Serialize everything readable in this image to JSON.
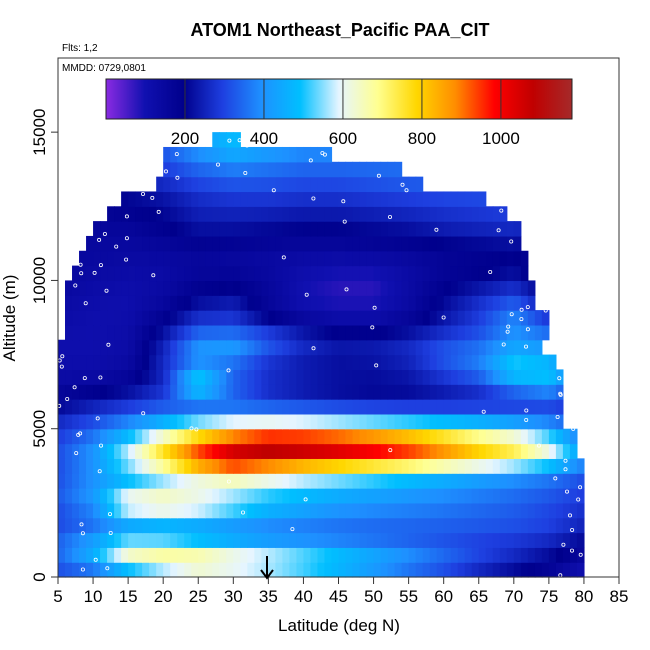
{
  "chart_data": {
    "type": "heatmap",
    "title": "ATOM1 Northeast_Pacific PAA_CIT",
    "annotations": {
      "flights": "Flts: 1,2",
      "dates": "MMDD: 0729,0801"
    },
    "xlabel": "Latitude (deg N)",
    "ylabel": "Altitude (m)",
    "xlim": [
      5,
      85
    ],
    "ylim": [
      0,
      17500
    ],
    "x_ticks": [
      "5",
      "10",
      "15",
      "20",
      "25",
      "30",
      "35",
      "40",
      "45",
      "50",
      "55",
      "60",
      "65",
      "70",
      "75",
      "80",
      "85"
    ],
    "y_ticks": [
      "0",
      "5000",
      "10000",
      "15000"
    ],
    "colorbar": {
      "range": [
        0,
        1180
      ],
      "ticks": [
        "200",
        "400",
        "600",
        "800",
        "1000"
      ],
      "colors": [
        "#8a2be2",
        "#1010b0",
        "#00008c",
        "#1e3fe0",
        "#1e90ff",
        "#00bfff",
        "#e6f5ff",
        "#ffff90",
        "#ffd700",
        "#ff8c00",
        "#ff0000",
        "#c00000",
        "#a52a2a"
      ]
    },
    "bins": {
      "lat_start": 5,
      "lat_step": 1,
      "alt_start": 0,
      "alt_step": 500,
      "lat_ranges": [
        [
          5,
          80
        ],
        [
          5,
          80
        ],
        [
          5,
          80
        ],
        [
          5,
          80
        ],
        [
          5,
          80
        ],
        [
          5,
          80
        ],
        [
          5,
          80
        ],
        [
          5,
          80
        ],
        [
          5,
          79
        ],
        [
          5,
          79
        ],
        [
          5,
          77
        ],
        [
          5,
          77
        ],
        [
          5,
          77
        ],
        [
          5,
          77
        ],
        [
          5,
          76
        ],
        [
          5,
          74
        ],
        [
          6,
          75
        ],
        [
          6,
          75
        ],
        [
          6,
          73
        ],
        [
          6,
          73
        ],
        [
          7,
          72
        ],
        [
          8,
          72
        ],
        [
          9,
          71
        ],
        [
          10,
          71
        ],
        [
          12,
          69
        ],
        [
          14,
          66
        ],
        [
          19,
          57
        ],
        [
          20,
          54
        ],
        [
          20,
          44
        ],
        [
          27,
          31
        ]
      ]
    },
    "profile": {
      "alt": [
        0,
        500,
        1000,
        1500,
        2000,
        2500,
        3000,
        3500,
        4000,
        4500,
        5000,
        5500,
        6000,
        6500,
        7000,
        7500,
        8000,
        8500,
        9000,
        9500,
        10000,
        10500,
        11000,
        11500,
        12000,
        12500,
        13000,
        13500,
        14000,
        14500
      ],
      "lat": [
        5,
        10,
        15,
        20,
        25,
        30,
        35,
        40,
        45,
        50,
        55,
        60,
        65,
        70,
        75,
        80
      ],
      "values": [
        [
          300,
          310,
          360,
          420,
          500,
          480,
          450,
          420,
          380,
          330,
          280,
          250,
          200,
          170,
          140,
          90
        ],
        [
          330,
          420,
          620,
          720,
          760,
          720,
          680,
          620,
          560,
          500,
          440,
          380,
          320,
          260,
          200,
          120
        ],
        [
          350,
          480,
          650,
          620,
          560,
          500,
          460,
          430,
          400,
          370,
          340,
          310,
          280,
          260,
          230,
          180
        ],
        [
          320,
          360,
          420,
          440,
          420,
          400,
          380,
          370,
          360,
          350,
          340,
          330,
          320,
          310,
          290,
          240
        ],
        [
          300,
          360,
          470,
          500,
          480,
          440,
          400,
          380,
          360,
          350,
          345,
          340,
          330,
          320,
          300,
          260
        ],
        [
          320,
          400,
          680,
          720,
          680,
          600,
          520,
          480,
          440,
          420,
          400,
          380,
          360,
          340,
          310,
          280
        ],
        [
          330,
          420,
          520,
          560,
          540,
          520,
          500,
          480,
          460,
          440,
          420,
          400,
          380,
          360,
          340,
          300
        ],
        [
          300,
          380,
          460,
          560,
          700,
          780,
          720,
          660,
          620,
          580,
          540,
          500,
          460,
          420,
          380,
          320
        ],
        [
          320,
          420,
          620,
          800,
          980,
          1080,
          1050,
          1000,
          960,
          920,
          880,
          820,
          760,
          700,
          600,
          420
        ],
        [
          300,
          380,
          520,
          720,
          880,
          1020,
          1120,
          1120,
          1100,
          1060,
          1000,
          920,
          820,
          760,
          620,
          380
        ],
        [
          280,
          340,
          440,
          560,
          680,
          760,
          780,
          760,
          720,
          680,
          640,
          600,
          560,
          500,
          420,
          320
        ],
        [
          240,
          280,
          320,
          360,
          400,
          420,
          420,
          410,
          400,
          390,
          380,
          370,
          360,
          350,
          340,
          300
        ],
        [
          180,
          220,
          260,
          300,
          320,
          300,
          260,
          240,
          220,
          210,
          210,
          220,
          240,
          260,
          280,
          240
        ],
        [
          140,
          150,
          180,
          260,
          620,
          380,
          280,
          240,
          220,
          210,
          220,
          260,
          300,
          420,
          480,
          300
        ],
        [
          120,
          120,
          140,
          260,
          380,
          300,
          260,
          240,
          220,
          220,
          240,
          300,
          360,
          520,
          500,
          320
        ],
        [
          110,
          110,
          130,
          260,
          420,
          420,
          300,
          240,
          220,
          230,
          260,
          330,
          380,
          480,
          440,
          320
        ],
        [
          110,
          110,
          120,
          240,
          380,
          400,
          340,
          280,
          240,
          240,
          260,
          300,
          330,
          400,
          380,
          280
        ],
        [
          120,
          110,
          120,
          200,
          300,
          300,
          240,
          180,
          140,
          140,
          180,
          240,
          300,
          400,
          320,
          220
        ],
        [
          130,
          110,
          110,
          160,
          240,
          260,
          160,
          110,
          100,
          100,
          140,
          220,
          280,
          360,
          240,
          150
        ],
        [
          140,
          120,
          110,
          140,
          200,
          220,
          160,
          100,
          80,
          80,
          130,
          200,
          260,
          300,
          200,
          100
        ],
        [
          150,
          130,
          120,
          130,
          170,
          180,
          150,
          100,
          80,
          80,
          130,
          180,
          200,
          240,
          160,
          80
        ],
        [
          150,
          140,
          130,
          130,
          150,
          150,
          140,
          120,
          110,
          110,
          130,
          160,
          180,
          200,
          150,
          80
        ],
        [
          150,
          150,
          140,
          150,
          160,
          150,
          140,
          140,
          140,
          150,
          160,
          180,
          190,
          200,
          160,
          100
        ],
        [
          150,
          150,
          150,
          170,
          200,
          200,
          190,
          180,
          180,
          190,
          200,
          220,
          230,
          240,
          200,
          150
        ],
        [
          160,
          160,
          170,
          200,
          240,
          240,
          230,
          220,
          220,
          230,
          240,
          260,
          270,
          280,
          240,
          180
        ],
        [
          180,
          180,
          190,
          210,
          250,
          260,
          260,
          250,
          250,
          260,
          270,
          280,
          290,
          300,
          260,
          200
        ],
        [
          200,
          200,
          220,
          240,
          280,
          300,
          300,
          290,
          290,
          300,
          310,
          320,
          320,
          320,
          280,
          220
        ],
        [
          220,
          220,
          240,
          280,
          320,
          340,
          330,
          320,
          320,
          330,
          340,
          340,
          340,
          340,
          300,
          240
        ],
        [
          240,
          240,
          260,
          300,
          360,
          400,
          380,
          360,
          360,
          360,
          360,
          360,
          360,
          360,
          320,
          260
        ],
        [
          260,
          260,
          300,
          340,
          420,
          480,
          440,
          400,
          400,
          400,
          400,
          400,
          400,
          400,
          360,
          280
        ]
      ]
    }
  }
}
